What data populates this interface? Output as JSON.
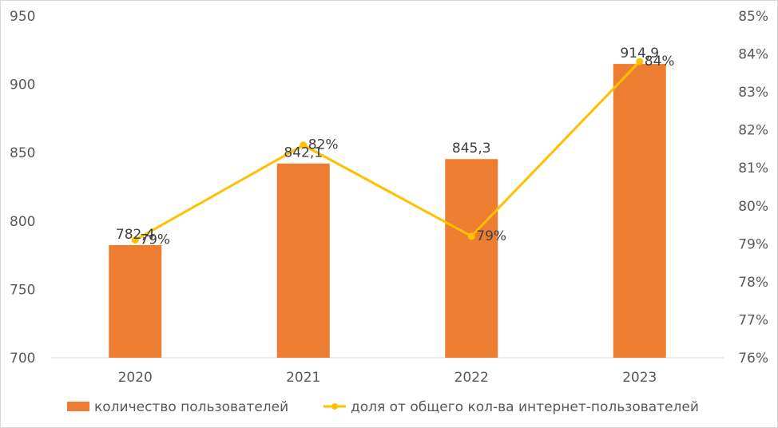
{
  "chart_data": {
    "type": "bar",
    "categories": [
      "2020",
      "2021",
      "2022",
      "2023"
    ],
    "series": [
      {
        "name": "количество пользователей",
        "type": "bar",
        "axis": "left",
        "values": [
          782.4,
          842.1,
          845.3,
          914.9
        ],
        "labels": [
          "782,4",
          "842,1",
          "845,3",
          "914,9"
        ],
        "color": "#ED7D31"
      },
      {
        "name": "доля от общего кол-ва интернет-пользователей",
        "type": "line",
        "axis": "right",
        "values": [
          79.1,
          81.6,
          79.2,
          83.8
        ],
        "labels": [
          "79%",
          "82%",
          "79%",
          "84%"
        ],
        "color": "#FFC000"
      }
    ],
    "y_left": {
      "ylim": [
        700,
        950
      ],
      "ticks": [
        "700",
        "750",
        "800",
        "850",
        "900",
        "950"
      ]
    },
    "y_right": {
      "ylim": [
        76,
        85
      ],
      "ticks": [
        "76%",
        "77%",
        "78%",
        "79%",
        "80%",
        "81%",
        "82%",
        "83%",
        "84%",
        "85%"
      ]
    },
    "grid": false,
    "legend": "bottom"
  }
}
